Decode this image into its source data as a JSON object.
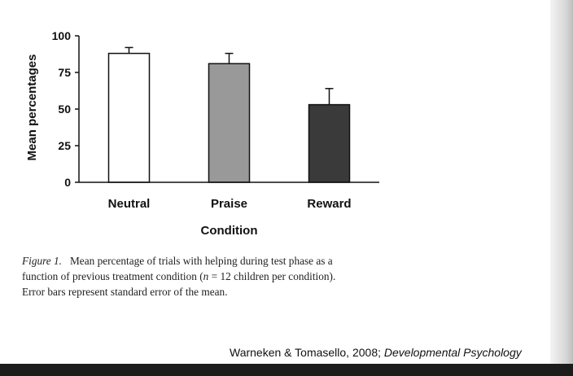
{
  "chart_data": {
    "type": "bar",
    "categories": [
      "Neutral",
      "Praise",
      "Reward"
    ],
    "values": [
      88,
      81,
      53
    ],
    "errors": [
      4,
      7,
      11
    ],
    "bar_colors": [
      "#ffffff",
      "#999999",
      "#3a3a3a"
    ],
    "ylim": [
      0,
      100
    ],
    "yticks": [
      0,
      25,
      50,
      75,
      100
    ],
    "xlabel": "Condition",
    "ylabel": "Mean percentages",
    "title": "",
    "grid": false
  },
  "caption": {
    "figure_label": "Figure 1.",
    "line1": "Mean percentage of trials with helping during test phase as a",
    "line2_before": "function of previous treatment condition (",
    "n_symbol": "n",
    "line2_after": " = 12 children per condition).",
    "line3": "Error bars represent standard error of the mean."
  },
  "citation": {
    "authors": "Warneken & Tomasello, 2008; ",
    "journal": "Developmental Psychology"
  }
}
